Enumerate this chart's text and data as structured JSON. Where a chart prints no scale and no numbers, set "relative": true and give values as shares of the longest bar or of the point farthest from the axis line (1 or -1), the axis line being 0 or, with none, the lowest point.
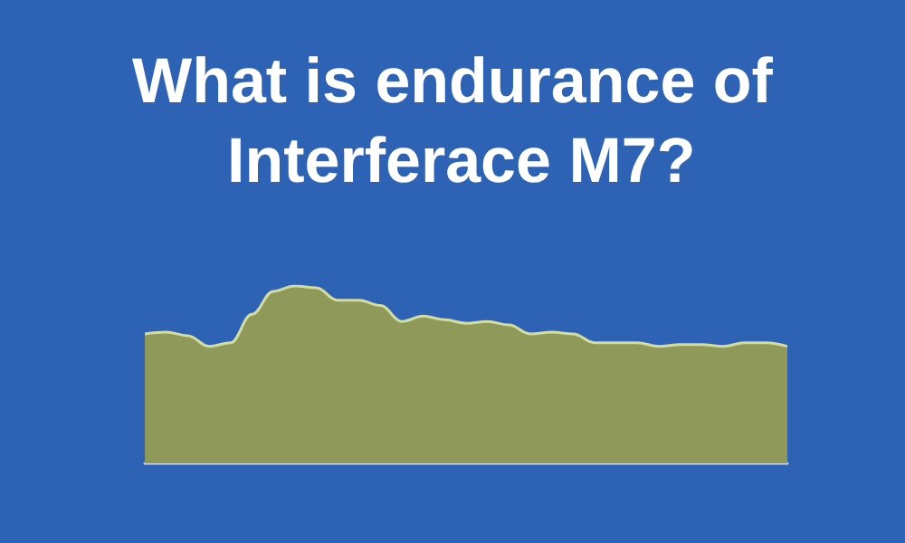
{
  "chart_data": {
    "type": "area",
    "title": "What is endurance of Interferace M7?",
    "relative": true,
    "categories": [
      null,
      null,
      null,
      null,
      null,
      null,
      null,
      null,
      null,
      null,
      null,
      null,
      null,
      null,
      null,
      null,
      null,
      null,
      null,
      null,
      null,
      null,
      null,
      null,
      null,
      null,
      null,
      null,
      null,
      null,
      null
    ],
    "series": [
      {
        "color": "#8f9a5a",
        "values": [
          0.73,
          0.74,
          0.72,
          0.66,
          0.68,
          0.84,
          0.97,
          1.0,
          0.99,
          0.92,
          0.92,
          0.89,
          0.8,
          0.83,
          0.81,
          0.79,
          0.8,
          0.78,
          0.73,
          0.74,
          0.73,
          0.68,
          0.68,
          0.68,
          0.66,
          0.67,
          0.67,
          0.66,
          0.68,
          0.68,
          0.66
        ]
      }
    ],
    "marker": "none"
  }
}
